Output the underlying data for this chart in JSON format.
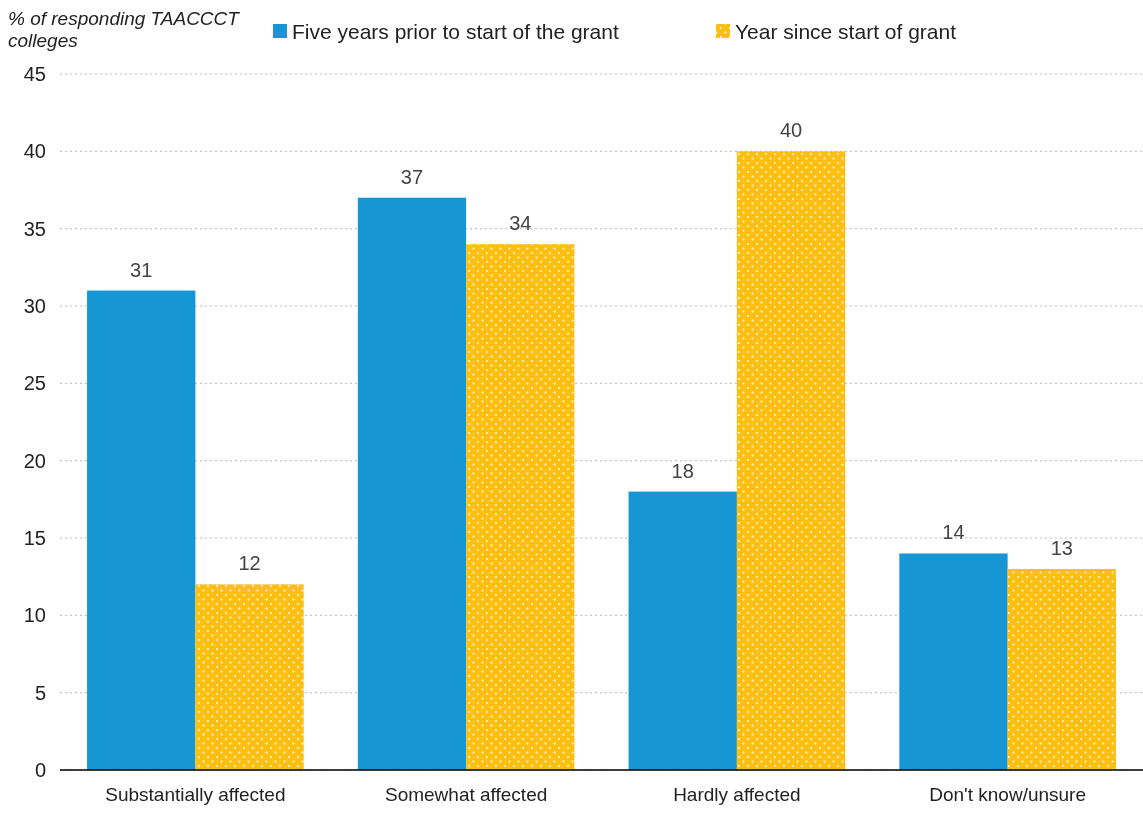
{
  "chart_data": {
    "type": "bar",
    "ylabel": "% of responding TAACCCT colleges",
    "categories": [
      "Substantially affected",
      "Somewhat affected",
      "Hardly affected",
      "Don't know/unsure"
    ],
    "series": [
      {
        "name": "Five years prior to start of the grant",
        "color": "#1696d2",
        "values": [
          31,
          37,
          18,
          14
        ]
      },
      {
        "name": "Year since start of grant",
        "color": "#fdbf11",
        "values": [
          12,
          34,
          40,
          13
        ]
      }
    ],
    "ylim": [
      0,
      45
    ],
    "yticks": [
      0,
      5,
      10,
      15,
      20,
      25,
      30,
      35,
      40,
      45
    ],
    "grid": "y",
    "legend": "top",
    "data_labels": true
  }
}
